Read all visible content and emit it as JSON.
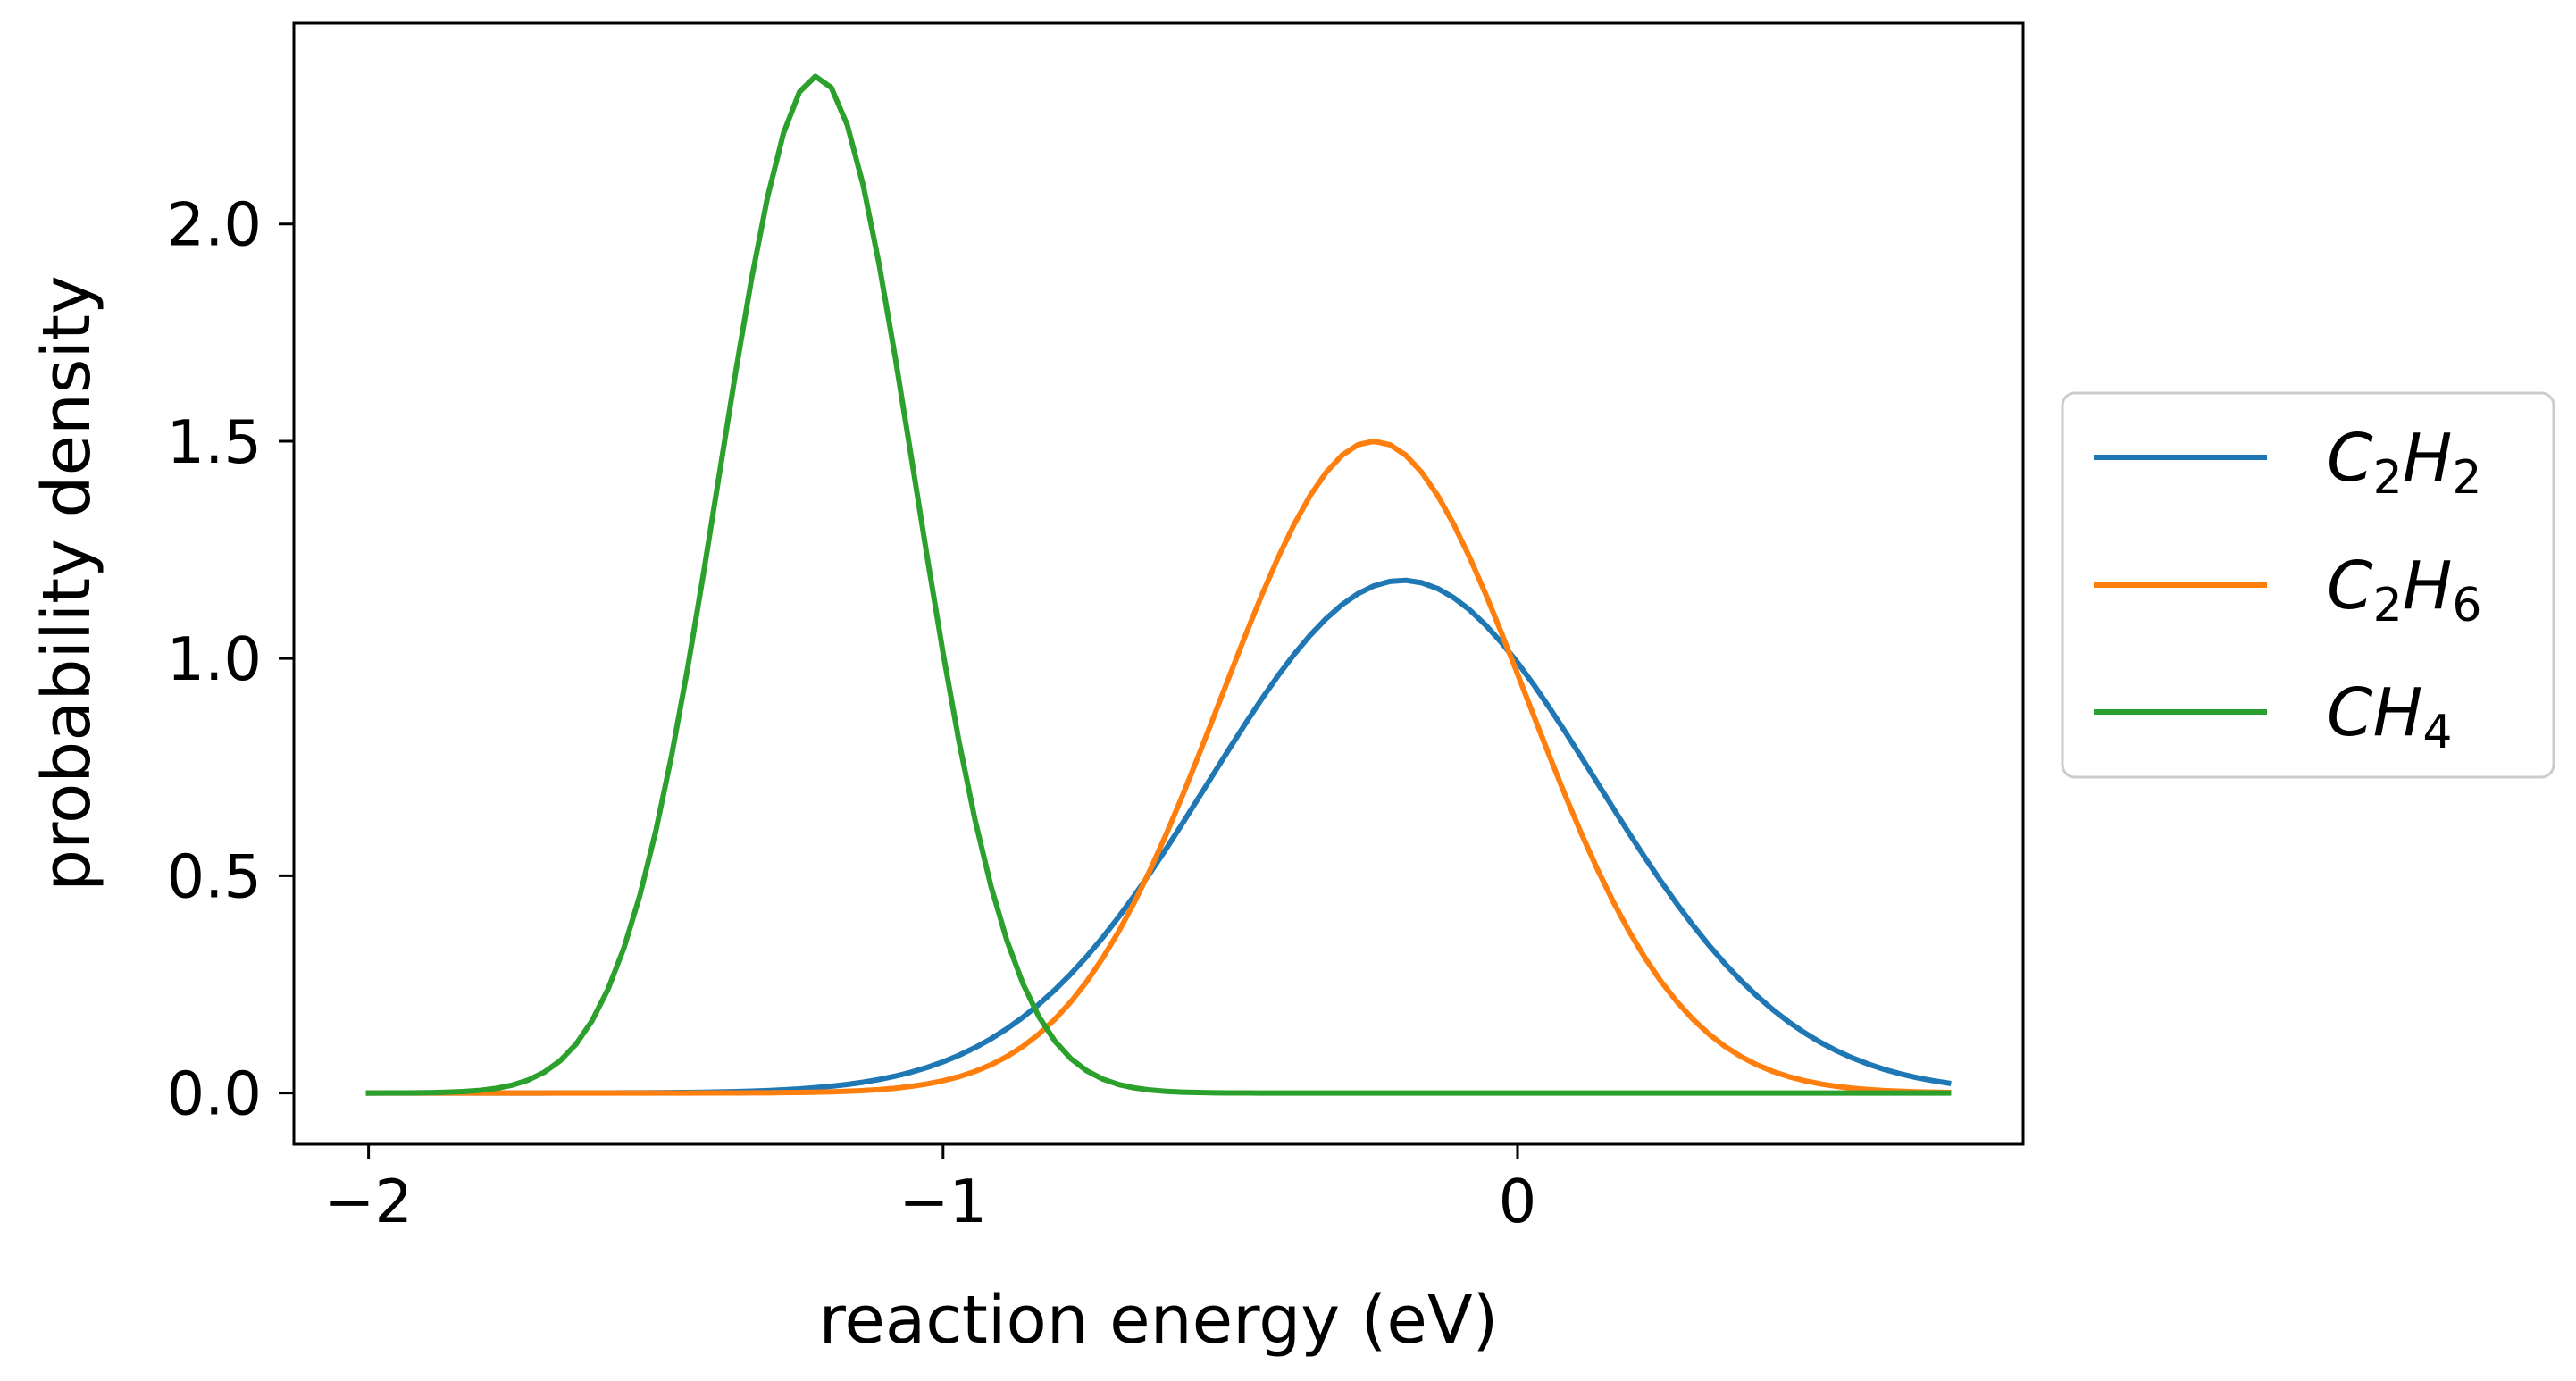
{
  "chart_data": {
    "type": "line",
    "title": "",
    "xlabel": "reaction energy (eV)",
    "ylabel": "probability density",
    "xlim": [
      -2.13,
      0.88
    ],
    "ylim": [
      -0.118,
      2.462
    ],
    "grid": false,
    "legend_position": "outside-right",
    "xticks": [
      -2,
      -1,
      0
    ],
    "xtick_labels": [
      "−2",
      "−1",
      "0"
    ],
    "yticks": [
      0.0,
      0.5,
      1.0,
      1.5,
      2.0
    ],
    "ytick_labels": [
      "0.0",
      "0.5",
      "1.0",
      "1.5",
      "2.0"
    ],
    "x_range": [
      -2.0,
      0.75
    ],
    "num_points": 100,
    "series": [
      {
        "name": "C2H2",
        "label_main": "C",
        "label_sub1": "2",
        "label_mid": "H",
        "label_sub2": "2",
        "color": "#1f77b4",
        "distribution": "normal",
        "mean": -0.2,
        "std": 0.338,
        "peak": 1.18
      },
      {
        "name": "C2H6",
        "label_main": "C",
        "label_sub1": "2",
        "label_mid": "H",
        "label_sub2": "6",
        "color": "#ff7f0e",
        "distribution": "normal",
        "mean": -0.25,
        "std": 0.266,
        "peak": 1.5
      },
      {
        "name": "CH4",
        "label_main": "CH",
        "label_sub1": "4",
        "label_mid": "",
        "label_sub2": "",
        "color": "#2ca02c",
        "distribution": "normal",
        "mean": -1.22,
        "std": 0.17,
        "peak": 2.34
      }
    ]
  }
}
